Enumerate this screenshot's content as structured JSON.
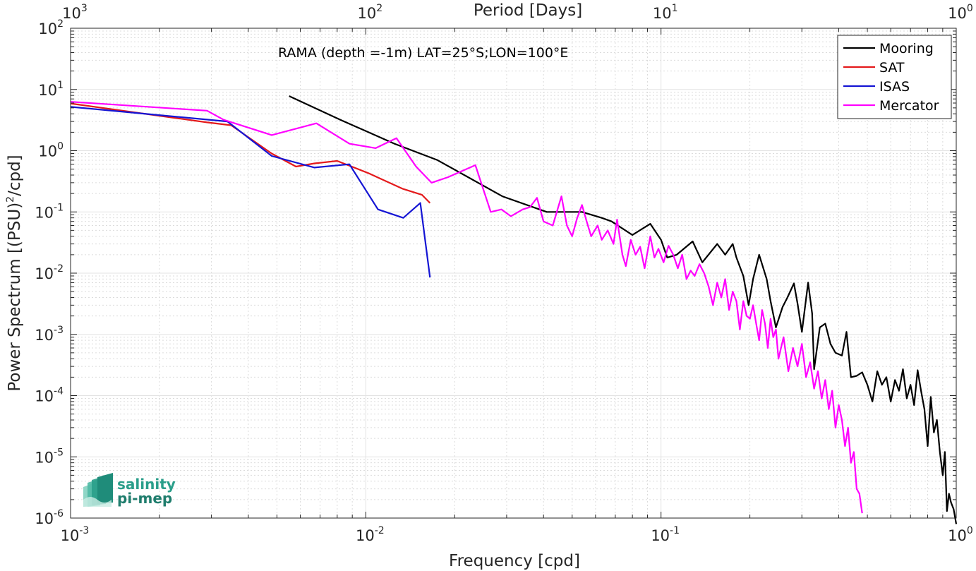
{
  "chart_data": {
    "type": "line",
    "title": "",
    "annotation": "RAMA (depth =-1m) LAT=25°S;LON=100°E",
    "xlabel": "Frequency [cpd]",
    "ylabel": "Power Spectrum [(PSU)",
    "ylabel_sup": "2",
    "ylabel_suffix": "/cpd]",
    "top_xlabel": "Period [Days]",
    "xscale": "log",
    "yscale": "log",
    "xlim": [
      0.001,
      1
    ],
    "ylim": [
      1e-06,
      100
    ],
    "grid": true,
    "legend_position": "top-right",
    "x_ticks": [
      {
        "base": "10",
        "exp": "-3"
      },
      {
        "base": "10",
        "exp": "-2"
      },
      {
        "base": "10",
        "exp": "-1"
      },
      {
        "base": "10",
        "exp": "0"
      }
    ],
    "top_ticks": [
      {
        "base": "10",
        "exp": "3"
      },
      {
        "base": "10",
        "exp": "2"
      },
      {
        "base": "10",
        "exp": "1"
      },
      {
        "base": "10",
        "exp": "0"
      }
    ],
    "y_ticks": [
      {
        "base": "10",
        "exp": "-6"
      },
      {
        "base": "10",
        "exp": "-5"
      },
      {
        "base": "10",
        "exp": "-4"
      },
      {
        "base": "10",
        "exp": "-3"
      },
      {
        "base": "10",
        "exp": "-2"
      },
      {
        "base": "10",
        "exp": "-1"
      },
      {
        "base": "10",
        "exp": "0"
      },
      {
        "base": "10",
        "exp": "1"
      },
      {
        "base": "10",
        "exp": "2"
      }
    ],
    "series": [
      {
        "name": "Mooring",
        "color": "#000000",
        "points": [
          [
            0.0055,
            7.8
          ],
          [
            0.0082,
            3.2
          ],
          [
            0.0125,
            1.3
          ],
          [
            0.0175,
            0.7
          ],
          [
            0.029,
            0.18
          ],
          [
            0.041,
            0.1
          ],
          [
            0.054,
            0.1
          ],
          [
            0.063,
            0.08
          ],
          [
            0.068,
            0.07
          ],
          [
            0.08,
            0.042
          ],
          [
            0.092,
            0.064
          ],
          [
            0.1,
            0.035
          ],
          [
            0.105,
            0.018
          ],
          [
            0.113,
            0.02
          ],
          [
            0.128,
            0.033
          ],
          [
            0.138,
            0.015
          ],
          [
            0.155,
            0.03
          ],
          [
            0.165,
            0.02
          ],
          [
            0.175,
            0.03
          ],
          [
            0.18,
            0.018
          ],
          [
            0.19,
            0.009
          ],
          [
            0.198,
            0.003
          ],
          [
            0.205,
            0.008
          ],
          [
            0.215,
            0.02
          ],
          [
            0.228,
            0.008
          ],
          [
            0.235,
            0.0035
          ],
          [
            0.245,
            0.0013
          ],
          [
            0.258,
            0.0028
          ],
          [
            0.268,
            0.004
          ],
          [
            0.282,
            0.0068
          ],
          [
            0.29,
            0.0032
          ],
          [
            0.3,
            0.0011
          ],
          [
            0.315,
            0.007
          ],
          [
            0.325,
            0.0022
          ],
          [
            0.33,
            0.00027
          ],
          [
            0.345,
            0.0013
          ],
          [
            0.36,
            0.0015
          ],
          [
            0.375,
            0.0007
          ],
          [
            0.39,
            0.0005
          ],
          [
            0.41,
            0.00045
          ],
          [
            0.425,
            0.0011
          ],
          [
            0.44,
            0.0002
          ],
          [
            0.46,
            0.00021
          ],
          [
            0.48,
            0.00024
          ],
          [
            0.5,
            0.00015
          ],
          [
            0.52,
            8e-05
          ],
          [
            0.54,
            0.00025
          ],
          [
            0.56,
            0.00015
          ],
          [
            0.58,
            0.0002
          ],
          [
            0.6,
            8e-05
          ],
          [
            0.62,
            0.00018
          ],
          [
            0.64,
            0.00012
          ],
          [
            0.66,
            0.00027
          ],
          [
            0.68,
            9e-05
          ],
          [
            0.7,
            0.00015
          ],
          [
            0.72,
            7e-05
          ],
          [
            0.74,
            0.00026
          ],
          [
            0.76,
            0.00012
          ],
          [
            0.78,
            6e-05
          ],
          [
            0.8,
            1.5e-05
          ],
          [
            0.82,
            9.5e-05
          ],
          [
            0.84,
            2.5e-05
          ],
          [
            0.86,
            4e-05
          ],
          [
            0.88,
            1.2e-05
          ],
          [
            0.9,
            5e-06
          ],
          [
            0.915,
            1.2e-05
          ],
          [
            0.93,
            1.3e-06
          ],
          [
            0.945,
            2.5e-06
          ],
          [
            0.96,
            1.8e-06
          ],
          [
            0.98,
            1.4e-06
          ],
          [
            1.0,
            8e-07
          ]
        ]
      },
      {
        "name": "SAT",
        "color": "#e41a1c",
        "points": [
          [
            0.001,
            5.9
          ],
          [
            0.0029,
            2.9
          ],
          [
            0.0035,
            2.6
          ],
          [
            0.0048,
            0.9
          ],
          [
            0.0058,
            0.55
          ],
          [
            0.0067,
            0.62
          ],
          [
            0.008,
            0.68
          ],
          [
            0.0102,
            0.43
          ],
          [
            0.0133,
            0.24
          ],
          [
            0.0155,
            0.19
          ],
          [
            0.0165,
            0.14
          ]
        ]
      },
      {
        "name": "ISAS",
        "color": "#1515d4",
        "points": [
          [
            0.001,
            5.2
          ],
          [
            0.0034,
            3.0
          ],
          [
            0.0048,
            0.82
          ],
          [
            0.0067,
            0.53
          ],
          [
            0.0088,
            0.6
          ],
          [
            0.011,
            0.11
          ],
          [
            0.0134,
            0.08
          ],
          [
            0.0153,
            0.14
          ],
          [
            0.0165,
            0.0085
          ]
        ]
      },
      {
        "name": "Mercator",
        "color": "#ff00ff",
        "points": [
          [
            0.001,
            6.3
          ],
          [
            0.0029,
            4.5
          ],
          [
            0.0033,
            3.2
          ],
          [
            0.0048,
            1.8
          ],
          [
            0.0068,
            2.8
          ],
          [
            0.0088,
            1.3
          ],
          [
            0.0108,
            1.1
          ],
          [
            0.0127,
            1.6
          ],
          [
            0.0148,
            0.55
          ],
          [
            0.0167,
            0.3
          ],
          [
            0.019,
            0.37
          ],
          [
            0.0235,
            0.58
          ],
          [
            0.0265,
            0.1
          ],
          [
            0.0288,
            0.11
          ],
          [
            0.031,
            0.085
          ],
          [
            0.034,
            0.11
          ],
          [
            0.036,
            0.12
          ],
          [
            0.038,
            0.17
          ],
          [
            0.04,
            0.07
          ],
          [
            0.043,
            0.06
          ],
          [
            0.046,
            0.18
          ],
          [
            0.048,
            0.06
          ],
          [
            0.05,
            0.04
          ],
          [
            0.052,
            0.08
          ],
          [
            0.054,
            0.13
          ],
          [
            0.056,
            0.07
          ],
          [
            0.058,
            0.04
          ],
          [
            0.061,
            0.06
          ],
          [
            0.063,
            0.035
          ],
          [
            0.066,
            0.05
          ],
          [
            0.069,
            0.03
          ],
          [
            0.071,
            0.075
          ],
          [
            0.074,
            0.02
          ],
          [
            0.076,
            0.013
          ],
          [
            0.079,
            0.035
          ],
          [
            0.082,
            0.02
          ],
          [
            0.085,
            0.027
          ],
          [
            0.088,
            0.012
          ],
          [
            0.092,
            0.04
          ],
          [
            0.095,
            0.018
          ],
          [
            0.098,
            0.025
          ],
          [
            0.102,
            0.015
          ],
          [
            0.106,
            0.028
          ],
          [
            0.11,
            0.02
          ],
          [
            0.114,
            0.012
          ],
          [
            0.118,
            0.02
          ],
          [
            0.122,
            0.008
          ],
          [
            0.126,
            0.011
          ],
          [
            0.13,
            0.009
          ],
          [
            0.135,
            0.014
          ],
          [
            0.14,
            0.01
          ],
          [
            0.145,
            0.006
          ],
          [
            0.15,
            0.003
          ],
          [
            0.155,
            0.007
          ],
          [
            0.16,
            0.004
          ],
          [
            0.165,
            0.008
          ],
          [
            0.17,
            0.0025
          ],
          [
            0.175,
            0.005
          ],
          [
            0.18,
            0.0035
          ],
          [
            0.185,
            0.0012
          ],
          [
            0.19,
            0.0035
          ],
          [
            0.195,
            0.002
          ],
          [
            0.2,
            0.0018
          ],
          [
            0.205,
            0.003
          ],
          [
            0.21,
            0.0015
          ],
          [
            0.215,
            0.0008
          ],
          [
            0.22,
            0.0025
          ],
          [
            0.225,
            0.0015
          ],
          [
            0.23,
            0.0006
          ],
          [
            0.235,
            0.0018
          ],
          [
            0.24,
            0.0009
          ],
          [
            0.245,
            0.0012
          ],
          [
            0.25,
            0.0004
          ],
          [
            0.26,
            0.0009
          ],
          [
            0.27,
            0.00025
          ],
          [
            0.28,
            0.0006
          ],
          [
            0.29,
            0.0003
          ],
          [
            0.3,
            0.0007
          ],
          [
            0.31,
            0.0002
          ],
          [
            0.32,
            0.00035
          ],
          [
            0.33,
            0.00013
          ],
          [
            0.34,
            0.00025
          ],
          [
            0.35,
            9e-05
          ],
          [
            0.36,
            0.00018
          ],
          [
            0.37,
            6e-05
          ],
          [
            0.38,
            0.00012
          ],
          [
            0.39,
            3e-05
          ],
          [
            0.4,
            7e-05
          ],
          [
            0.41,
            4e-05
          ],
          [
            0.42,
            1.5e-05
          ],
          [
            0.43,
            3e-05
          ],
          [
            0.44,
            8e-06
          ],
          [
            0.45,
            1.2e-05
          ],
          [
            0.46,
            3e-06
          ],
          [
            0.47,
            2.5e-06
          ],
          [
            0.48,
            1.2e-06
          ]
        ]
      }
    ]
  },
  "logo": {
    "line1": "salinity",
    "line2": "pi-mep"
  }
}
